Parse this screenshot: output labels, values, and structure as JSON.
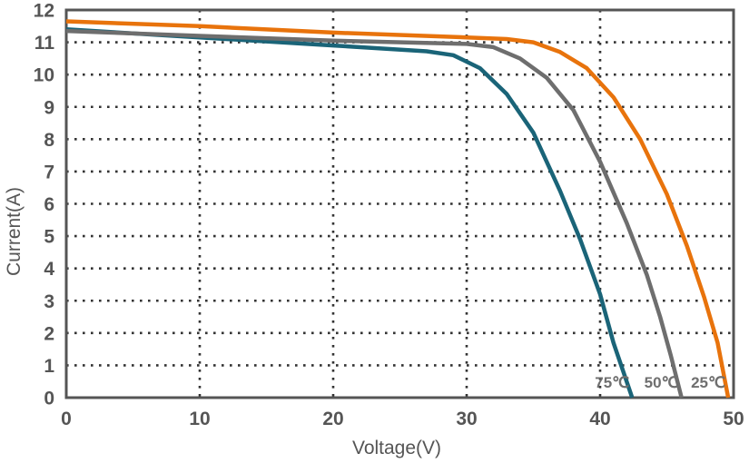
{
  "chart_data": {
    "type": "line",
    "xlabel": "Voltage(V)",
    "ylabel": "Current(A)",
    "xlim": [
      0,
      50
    ],
    "ylim": [
      0,
      12
    ],
    "xticks": [
      "0",
      "10",
      "20",
      "30",
      "40",
      "50"
    ],
    "yticks": [
      "0",
      "1",
      "2",
      "3",
      "4",
      "5",
      "6",
      "7",
      "8",
      "9",
      "10",
      "11",
      "12"
    ],
    "grid": true,
    "series": [
      {
        "name": "75℃",
        "color": "#1a6478",
        "x": [
          0,
          10,
          20,
          27,
          29,
          31,
          33,
          35,
          37,
          38.5,
          40,
          41,
          42.4
        ],
        "y": [
          11.4,
          11.15,
          10.9,
          10.72,
          10.6,
          10.2,
          9.4,
          8.2,
          6.4,
          4.9,
          3.2,
          1.7,
          0
        ]
      },
      {
        "name": "50℃",
        "color": "#6e6e6e",
        "x": [
          0,
          10,
          20,
          30,
          32,
          34,
          36,
          38,
          40,
          42,
          43.5,
          44.5,
          45.3,
          46.1
        ],
        "y": [
          11.35,
          11.2,
          11.05,
          10.95,
          10.85,
          10.5,
          9.9,
          8.9,
          7.3,
          5.4,
          3.8,
          2.5,
          1.3,
          0
        ]
      },
      {
        "name": "25℃",
        "color": "#e8730c",
        "x": [
          0,
          10,
          20,
          30,
          33,
          35,
          37,
          39,
          41,
          43,
          45,
          46.5,
          47.8,
          48.8,
          49.6
        ],
        "y": [
          11.65,
          11.5,
          11.3,
          11.15,
          11.1,
          11.0,
          10.7,
          10.2,
          9.3,
          8.0,
          6.3,
          4.7,
          3.1,
          1.7,
          0
        ]
      }
    ]
  }
}
